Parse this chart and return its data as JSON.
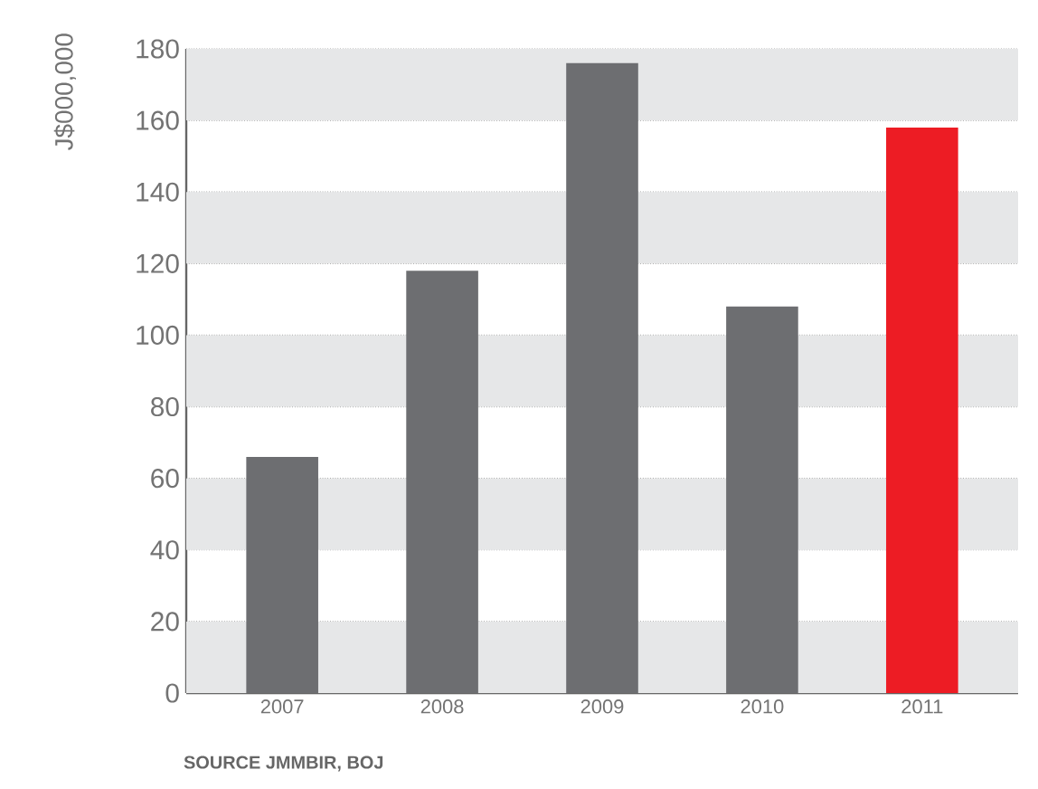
{
  "chart_data": {
    "type": "bar",
    "ylabel": "J$000,000",
    "categories": [
      "2007",
      "2008",
      "2009",
      "2010",
      "2011"
    ],
    "values": [
      66,
      118,
      176,
      108,
      158
    ],
    "colors": [
      "#6d6e71",
      "#6d6e71",
      "#6d6e71",
      "#6d6e71",
      "#ed1c24"
    ],
    "ylim": [
      0,
      180
    ],
    "yticks": [
      0,
      20,
      40,
      60,
      80,
      100,
      120,
      140,
      160,
      180
    ],
    "grid": "y",
    "bands": [
      {
        "axis": "y",
        "from": 0,
        "to": 20,
        "color": "#e6e7e8"
      },
      {
        "axis": "y",
        "from": 40,
        "to": 60,
        "color": "#e6e7e8"
      },
      {
        "axis": "y",
        "from": 80,
        "to": 100,
        "color": "#e6e7e8"
      },
      {
        "axis": "y",
        "from": 120,
        "to": 140,
        "color": "#e6e7e8"
      },
      {
        "axis": "y",
        "from": 160,
        "to": 180,
        "color": "#e6e7e8"
      }
    ],
    "annotations": [
      "SOURCE JMMBIR, BOJ"
    ]
  }
}
